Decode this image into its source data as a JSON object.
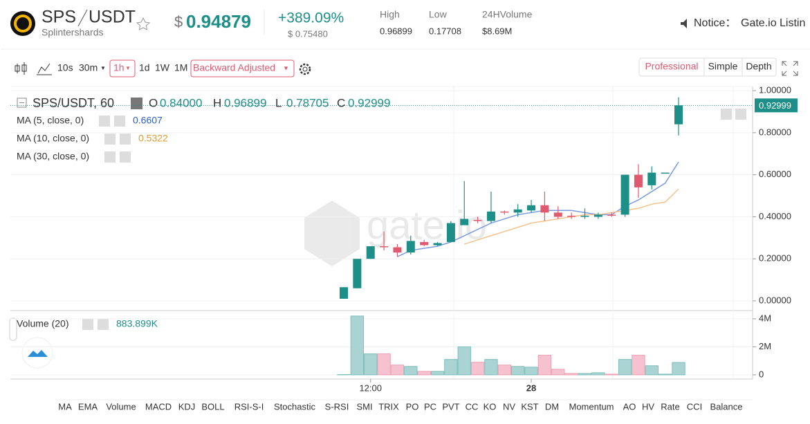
{
  "header": {
    "base": "SPS",
    "quote": "USDT",
    "subtitle": "Splintershards",
    "price_symbol": "$",
    "price": "0.94879",
    "change": "+389.09%",
    "change_usd": "$ 0.75480",
    "stats": [
      {
        "label": "High",
        "value": "0.96899"
      },
      {
        "label": "Low",
        "value": "0.17708"
      },
      {
        "label": "24HVolume",
        "value": "$8.69M"
      }
    ],
    "notice_label": "Notice：",
    "notice_text": "Gate.io Listin"
  },
  "toolbar": {
    "intervals": [
      "10s",
      "30m",
      "1h",
      "1d",
      "1W",
      "1M"
    ],
    "adjust": "Backward Adjusted",
    "views": [
      "Professional",
      "Simple",
      "Depth"
    ]
  },
  "legend": {
    "title": "SPS/USDT, 60",
    "ohlc": [
      {
        "label": "O",
        "value": "0.84000"
      },
      {
        "label": "H",
        "value": "0.96899"
      },
      {
        "label": "L",
        "value": "0.78705"
      },
      {
        "label": "C",
        "value": "0.92999"
      }
    ],
    "ma": [
      "MA (5, close, 0)",
      "MA (10, close, 0)",
      "MA (30, close, 0)"
    ],
    "volume": "Volume (20)",
    "volume_value": "883.899K"
  },
  "indicators": [
    "MA",
    "EMA",
    "Volume",
    "MACD",
    "KDJ",
    "BOLL",
    "RSI-S-I",
    "Stochastic",
    "S-RSI",
    "SMI",
    "TRIX",
    "PO",
    "PC",
    "PVT",
    "CC",
    "KO",
    "NV",
    "KST",
    "DM",
    "Momentum",
    "AO",
    "HV",
    "Rate",
    "CCI",
    "Balance"
  ],
  "chart_data": {
    "type": "candlestick",
    "categories": [
      null,
      null,
      "12:00",
      null,
      null,
      null,
      null,
      null,
      null,
      null,
      null,
      null,
      null,
      null,
      "28",
      null,
      null,
      null,
      null,
      null,
      null,
      null,
      null,
      null,
      null,
      null
    ],
    "open": [
      0.01,
      0.06,
      0.2,
      0.26,
      0.255,
      0.23,
      0.28,
      0.265,
      0.28,
      0.36,
      0.385,
      0.38,
      0.425,
      0.42,
      0.43,
      0.455,
      0.42,
      0.405,
      0.4,
      0.4,
      0.41,
      0.41,
      0.6,
      0.55,
      0.61,
      0.84
    ],
    "high": [
      0.065,
      0.2,
      0.26,
      0.33,
      0.27,
      0.31,
      0.29,
      0.28,
      0.38,
      0.57,
      0.4,
      0.52,
      0.43,
      0.46,
      0.48,
      0.52,
      0.45,
      0.42,
      0.44,
      0.42,
      0.42,
      0.6,
      0.65,
      0.64,
      0.61,
      0.96899
    ],
    "low": [
      0.01,
      0.06,
      0.2,
      0.24,
      0.21,
      0.22,
      0.26,
      0.26,
      0.28,
      0.36,
      0.37,
      0.37,
      0.41,
      0.4,
      0.42,
      0.38,
      0.39,
      0.39,
      0.39,
      0.39,
      0.4,
      0.4,
      0.49,
      0.53,
      0.61,
      0.78705
    ],
    "close": [
      0.065,
      0.2,
      0.26,
      0.255,
      0.23,
      0.285,
      0.265,
      0.275,
      0.37,
      0.39,
      0.38,
      0.425,
      0.42,
      0.435,
      0.455,
      0.42,
      0.4,
      0.4,
      0.405,
      0.41,
      0.405,
      0.6,
      0.54,
      0.61,
      0.61,
      0.92999
    ],
    "up_color": "#1d8f88",
    "down_color": "#e05a6f",
    "series": [
      {
        "name": "MA (5, close, 0)",
        "color": "#7b9be0",
        "values": [
          null,
          null,
          null,
          null,
          0.21,
          0.24,
          0.25,
          0.26,
          0.28,
          0.31,
          0.34,
          0.37,
          0.39,
          0.41,
          0.42,
          0.43,
          0.43,
          0.43,
          0.42,
          0.41,
          0.41,
          0.45,
          0.48,
          0.52,
          0.56,
          0.6607
        ]
      },
      {
        "name": "MA (10, close, 0)",
        "color": "#f3c28d",
        "values": [
          null,
          null,
          null,
          null,
          null,
          null,
          null,
          null,
          null,
          0.27,
          0.29,
          0.31,
          0.33,
          0.35,
          0.37,
          0.38,
          0.39,
          0.4,
          0.41,
          0.41,
          0.42,
          0.43,
          0.44,
          0.46,
          0.47,
          0.5322
        ]
      }
    ],
    "volume": [
      20000,
      4200000,
      1500000,
      1500000,
      700000,
      600000,
      250000,
      250000,
      1100000,
      2000000,
      900000,
      1100000,
      700000,
      600000,
      550000,
      1400000,
      400000,
      100000,
      100000,
      150000,
      50000,
      1100000,
      1400000,
      650000,
      50000,
      883899
    ],
    "ylim": [
      -0.033,
      1.02
    ],
    "yticks": [
      {
        "value": 0,
        "label": "0.00000"
      },
      {
        "value": 0.2,
        "label": "0.20000"
      },
      {
        "value": 0.4,
        "label": "0.40000"
      },
      {
        "value": 0.6,
        "label": "0.60000"
      },
      {
        "value": 0.8,
        "label": "0.80000"
      },
      {
        "value": 1,
        "label": "1.00000"
      }
    ],
    "y2lim": [
      -300000,
      4540000
    ],
    "y2ticks": [
      0,
      {
        "value": 2000000,
        "label": "2M"
      },
      {
        "value": 4000000,
        "label": "4M"
      }
    ],
    "grid": true
  }
}
